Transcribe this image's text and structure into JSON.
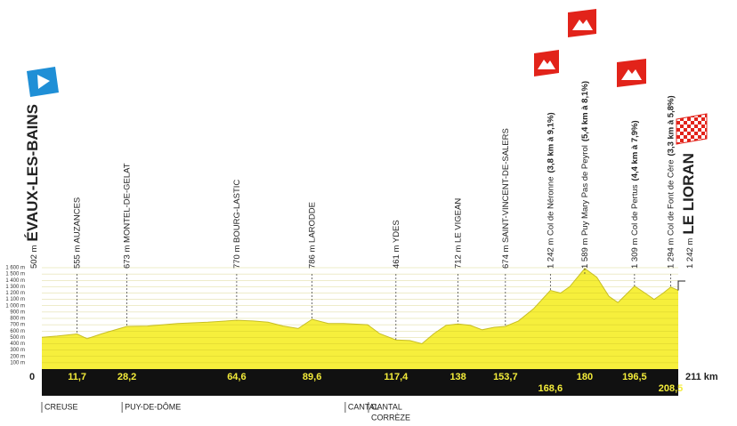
{
  "chart_data": {
    "type": "area",
    "color": "#f6ef3c",
    "x": [
      0,
      5,
      11.7,
      15,
      20,
      28.2,
      35,
      45,
      55,
      64.6,
      70,
      75,
      80,
      85,
      89.6,
      95,
      100,
      108,
      112,
      117.4,
      122,
      126,
      130,
      134,
      138,
      142,
      146,
      150,
      153.7,
      158,
      163,
      168.6,
      172,
      175,
      180,
      184,
      188,
      191,
      196.5,
      200,
      203,
      206,
      208.5,
      211
    ],
    "values": [
      502,
      520,
      555,
      480,
      560,
      673,
      680,
      720,
      740,
      770,
      760,
      740,
      680,
      640,
      786,
      720,
      720,
      700,
      560,
      461,
      450,
      400,
      560,
      690,
      712,
      690,
      620,
      660,
      674,
      760,
      950,
      1242,
      1200,
      1300,
      1589,
      1450,
      1150,
      1050,
      1309,
      1200,
      1100,
      1200,
      1294,
      1242
    ],
    "xlim": [
      0,
      211
    ],
    "ylim": [
      0,
      1600
    ],
    "yticks": [
      {
        "value": 100,
        "label": "100 m"
      },
      {
        "value": 200,
        "label": "200 m"
      },
      {
        "value": 300,
        "label": "300 m"
      },
      {
        "value": 400,
        "label": "400 m"
      },
      {
        "value": 500,
        "label": "500 m"
      },
      {
        "value": 600,
        "label": "600 m"
      },
      {
        "value": 700,
        "label": "700 m"
      },
      {
        "value": 800,
        "label": "800 m"
      },
      {
        "value": 900,
        "label": "900 m"
      },
      {
        "value": 1000,
        "label": "1 000 m"
      },
      {
        "value": 1100,
        "label": "1 100 m"
      },
      {
        "value": 1200,
        "label": "1 200 m"
      },
      {
        "value": 1300,
        "label": "1 300 m"
      },
      {
        "value": 1400,
        "label": "1 400 m"
      },
      {
        "value": 1500,
        "label": "1 500 m"
      },
      {
        "value": 1600,
        "label": "1 600 m"
      }
    ],
    "xticks": [
      0,
      {
        "value": 11.7,
        "label": "11,7"
      },
      {
        "value": 28.2,
        "label": "28,2"
      },
      {
        "value": 64.6,
        "label": "64,6"
      },
      {
        "value": 89.6,
        "label": "89,6"
      },
      {
        "value": 117.4,
        "label": "117,4"
      },
      138,
      {
        "value": 153.7,
        "label": "153,7"
      },
      {
        "value": 168.6,
        "label": "168,6"
      },
      180,
      {
        "value": 196.5,
        "label": "196,5"
      },
      {
        "value": 208.5,
        "label": "208,5"
      },
      {
        "value": 211,
        "label": "211 km"
      }
    ],
    "waypoints": [
      {
        "label": "502 m",
        "bold": "ÉVAUX-LES-BAINS"
      },
      {
        "label": "555 m AUZANCES"
      },
      {
        "label": "673 m MONTEL-DE-GELAT"
      },
      {
        "label": "770 m BOURG-LASTIC"
      },
      {
        "label": "786 m LARODDE"
      },
      {
        "label": "461 m YDES"
      },
      {
        "label": "712 m LE VIGEAN"
      },
      {
        "label": "674 m SAINT-VINCENT-DE-SALERS"
      },
      {
        "label": "1 242 m Col de Néronne",
        "bold": "(3,8 km à 9,1%)"
      },
      {
        "label": "1 589 m Puy Mary Pas de Peyrol",
        "bold": "(5,4 km à 8,1%)"
      },
      {
        "label": "1 309 m Col de Pertus",
        "bold": "(4,4 km à 7,9%)"
      },
      {
        "label": "1 294 m Col de Font de Cère",
        "bold": "(3,3 km à 5,8%)"
      },
      {
        "label": "1 242 m",
        "bold": "LE LIORAN"
      }
    ],
    "regions": [
      {
        "km": 0,
        "labels": [
          "CREUSE"
        ]
      },
      {
        "km": 26.6,
        "labels": [
          "PUY-DE-DÔME"
        ]
      },
      {
        "km": 100.6,
        "labels": [
          "CANTAL"
        ]
      },
      {
        "km": 108.3,
        "labels": [
          "CANTAL",
          "CORRÈZE"
        ]
      }
    ]
  }
}
